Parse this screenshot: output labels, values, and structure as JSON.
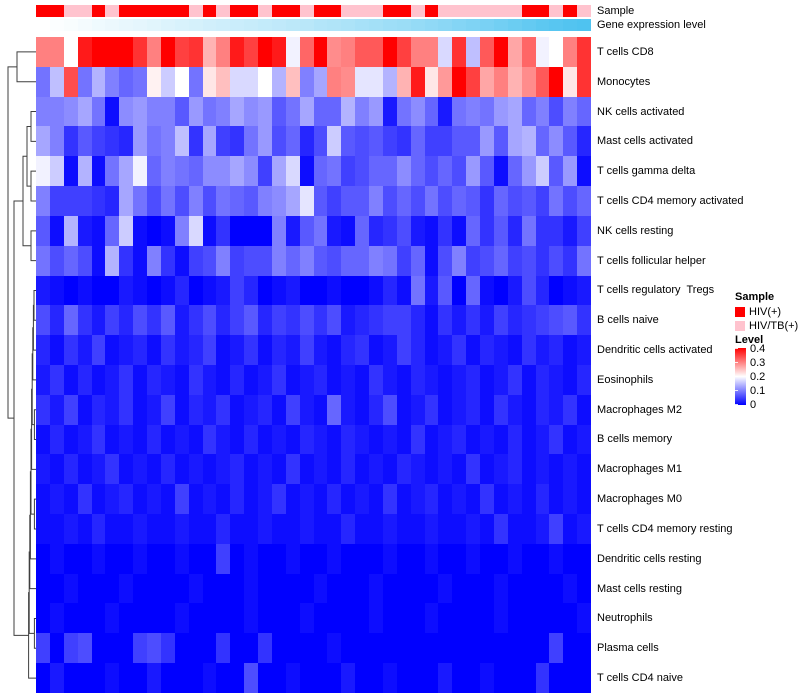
{
  "chart_data": {
    "type": "heatmap",
    "description": "Clustered heatmap of immune cell type levels per sample, with sample-group and gene-expression-level column annotations and a row dendrogram",
    "n_columns": 40,
    "value_range": [
      0,
      0.4
    ],
    "cell_types": [
      "T cells CD8",
      "Monocytes",
      "NK cells activated",
      "Mast cells activated",
      "T cells gamma delta",
      "T cells CD4 memory activated",
      "NK cells resting",
      "T cells follicular helper",
      "T cells regulatory  Tregs",
      "B cells naive",
      "Dendritic cells activated",
      "Eosinophils",
      "Macrophages M2",
      "B cells memory",
      "Macrophages M1",
      "Macrophages M0",
      "T cells CD4 memory resting",
      "Dendritic cells resting",
      "Mast cells resting",
      "Neutrophils",
      "Plasma cells",
      "T cells CD4 naive"
    ],
    "matrix": [
      [
        0.3,
        0.3,
        0.2,
        0.38,
        0.4,
        0.4,
        0.4,
        0.36,
        0.3,
        0.4,
        0.35,
        0.36,
        0.26,
        0.3,
        0.38,
        0.35,
        0.4,
        0.38,
        0.19,
        0.32,
        0.4,
        0.29,
        0.3,
        0.33,
        0.33,
        0.4,
        0.35,
        0.3,
        0.3,
        0.17,
        0.36,
        0.15,
        0.33,
        0.4,
        0.27,
        0.32,
        0.19,
        0.2,
        0.3,
        0.36
      ],
      [
        0.09,
        0.15,
        0.34,
        0.09,
        0.14,
        0.1,
        0.08,
        0.09,
        0.21,
        0.16,
        0.2,
        0.09,
        0.22,
        0.25,
        0.17,
        0.17,
        0.2,
        0.14,
        0.25,
        0.1,
        0.13,
        0.3,
        0.29,
        0.18,
        0.18,
        0.14,
        0.26,
        0.38,
        0.22,
        0.28,
        0.4,
        0.35,
        0.27,
        0.3,
        0.26,
        0.29,
        0.33,
        0.4,
        0.22,
        0.36
      ],
      [
        0.1,
        0.1,
        0.11,
        0.13,
        0.09,
        0.01,
        0.11,
        0.12,
        0.1,
        0.1,
        0.07,
        0.12,
        0.09,
        0.1,
        0.13,
        0.11,
        0.12,
        0.07,
        0.09,
        0.13,
        0.08,
        0.08,
        0.14,
        0.1,
        0.12,
        0.02,
        0.09,
        0.11,
        0.08,
        0.02,
        0.09,
        0.1,
        0.09,
        0.12,
        0.13,
        0.08,
        0.1,
        0.06,
        0.1,
        0.08
      ],
      [
        0.13,
        0.1,
        0.04,
        0.07,
        0.05,
        0.04,
        0.03,
        0.12,
        0.09,
        0.1,
        0.15,
        0.04,
        0.13,
        0.05,
        0.04,
        0.09,
        0.12,
        0.06,
        0.08,
        0.03,
        0.06,
        0.16,
        0.07,
        0.06,
        0.07,
        0.05,
        0.04,
        0.08,
        0.05,
        0.05,
        0.07,
        0.07,
        0.12,
        0.07,
        0.13,
        0.14,
        0.08,
        0.11,
        0.07,
        0.03
      ],
      [
        0.19,
        0.16,
        0.01,
        0.14,
        0.01,
        0.09,
        0.13,
        0.19,
        0.08,
        0.1,
        0.09,
        0.08,
        0.11,
        0.11,
        0.13,
        0.11,
        0.05,
        0.13,
        0.17,
        0.01,
        0.08,
        0.09,
        0.05,
        0.06,
        0.08,
        0.08,
        0.11,
        0.08,
        0.06,
        0.08,
        0.06,
        0.12,
        0.07,
        0.01,
        0.08,
        0.12,
        0.16,
        0.07,
        0.12,
        0.01
      ],
      [
        0.1,
        0.05,
        0.05,
        0.05,
        0.04,
        0.03,
        0.13,
        0.09,
        0.06,
        0.09,
        0.06,
        0.1,
        0.06,
        0.09,
        0.08,
        0.07,
        0.1,
        0.11,
        0.13,
        0.18,
        0.07,
        0.05,
        0.07,
        0.07,
        0.1,
        0.06,
        0.08,
        0.06,
        0.09,
        0.06,
        0.08,
        0.07,
        0.04,
        0.08,
        0.06,
        0.07,
        0.05,
        0.09,
        0.06,
        0.08
      ],
      [
        0.07,
        0.01,
        0.14,
        0.02,
        0.01,
        0.08,
        0.16,
        0.01,
        0.0,
        0.01,
        0.1,
        0.17,
        0.01,
        0.04,
        0.0,
        0.0,
        0.0,
        0.1,
        0.02,
        0.07,
        0.09,
        0.02,
        0.01,
        0.08,
        0.03,
        0.04,
        0.06,
        0.02,
        0.01,
        0.04,
        0.01,
        0.08,
        0.04,
        0.07,
        0.03,
        0.09,
        0.04,
        0.04,
        0.02,
        0.05
      ],
      [
        0.09,
        0.06,
        0.08,
        0.06,
        0.01,
        0.14,
        0.04,
        0.01,
        0.1,
        0.04,
        0.01,
        0.05,
        0.06,
        0.1,
        0.05,
        0.06,
        0.06,
        0.1,
        0.08,
        0.1,
        0.07,
        0.06,
        0.08,
        0.08,
        0.1,
        0.09,
        0.05,
        0.08,
        0.01,
        0.06,
        0.1,
        0.05,
        0.06,
        0.08,
        0.05,
        0.06,
        0.04,
        0.06,
        0.04,
        0.09
      ],
      [
        0.02,
        0.01,
        0.0,
        0.01,
        0.0,
        0.0,
        0.02,
        0.01,
        0.0,
        0.01,
        0.03,
        0.0,
        0.01,
        0.02,
        0.05,
        0.03,
        0.0,
        0.01,
        0.02,
        0.0,
        0.0,
        0.01,
        0.0,
        0.0,
        0.01,
        0.03,
        0.01,
        0.09,
        0.02,
        0.07,
        0.0,
        0.08,
        0.01,
        0.0,
        0.02,
        0.06,
        0.03,
        0.0,
        0.01,
        0.02
      ],
      [
        0.06,
        0.03,
        0.08,
        0.04,
        0.02,
        0.05,
        0.03,
        0.06,
        0.04,
        0.07,
        0.02,
        0.04,
        0.06,
        0.03,
        0.05,
        0.07,
        0.03,
        0.05,
        0.04,
        0.06,
        0.04,
        0.06,
        0.02,
        0.03,
        0.04,
        0.05,
        0.05,
        0.03,
        0.01,
        0.04,
        0.02,
        0.04,
        0.02,
        0.05,
        0.03,
        0.04,
        0.05,
        0.06,
        0.07,
        0.04
      ],
      [
        0.03,
        0.01,
        0.04,
        0.02,
        0.05,
        0.01,
        0.02,
        0.03,
        0.01,
        0.04,
        0.02,
        0.03,
        0.05,
        0.01,
        0.02,
        0.04,
        0.01,
        0.03,
        0.02,
        0.05,
        0.02,
        0.01,
        0.03,
        0.04,
        0.01,
        0.02,
        0.05,
        0.03,
        0.01,
        0.02,
        0.04,
        0.01,
        0.03,
        0.02,
        0.01,
        0.04,
        0.02,
        0.03,
        0.01,
        0.02
      ],
      [
        0.02,
        0.04,
        0.01,
        0.03,
        0.01,
        0.02,
        0.04,
        0.01,
        0.03,
        0.02,
        0.01,
        0.04,
        0.02,
        0.01,
        0.03,
        0.01,
        0.02,
        0.04,
        0.01,
        0.02,
        0.03,
        0.01,
        0.02,
        0.01,
        0.04,
        0.02,
        0.01,
        0.03,
        0.02,
        0.01,
        0.02,
        0.03,
        0.01,
        0.02,
        0.04,
        0.01,
        0.03,
        0.02,
        0.01,
        0.03
      ],
      [
        0.04,
        0.02,
        0.05,
        0.01,
        0.03,
        0.02,
        0.04,
        0.01,
        0.02,
        0.05,
        0.01,
        0.03,
        0.02,
        0.04,
        0.01,
        0.02,
        0.03,
        0.01,
        0.05,
        0.02,
        0.01,
        0.08,
        0.02,
        0.01,
        0.03,
        0.06,
        0.01,
        0.02,
        0.04,
        0.01,
        0.02,
        0.03,
        0.01,
        0.04,
        0.02,
        0.01,
        0.03,
        0.02,
        0.04,
        0.01
      ],
      [
        0.01,
        0.03,
        0.01,
        0.02,
        0.04,
        0.01,
        0.02,
        0.01,
        0.03,
        0.01,
        0.02,
        0.01,
        0.04,
        0.02,
        0.01,
        0.03,
        0.01,
        0.02,
        0.01,
        0.03,
        0.02,
        0.01,
        0.03,
        0.02,
        0.01,
        0.02,
        0.01,
        0.04,
        0.01,
        0.02,
        0.03,
        0.01,
        0.02,
        0.01,
        0.03,
        0.01,
        0.02,
        0.04,
        0.01,
        0.02
      ],
      [
        0.02,
        0.01,
        0.03,
        0.01,
        0.02,
        0.04,
        0.01,
        0.02,
        0.01,
        0.03,
        0.01,
        0.02,
        0.01,
        0.02,
        0.03,
        0.01,
        0.02,
        0.01,
        0.04,
        0.01,
        0.02,
        0.01,
        0.03,
        0.01,
        0.02,
        0.01,
        0.03,
        0.02,
        0.01,
        0.02,
        0.01,
        0.04,
        0.01,
        0.02,
        0.03,
        0.01,
        0.02,
        0.01,
        0.02,
        0.01
      ],
      [
        0.01,
        0.02,
        0.01,
        0.04,
        0.01,
        0.02,
        0.03,
        0.01,
        0.02,
        0.01,
        0.05,
        0.01,
        0.02,
        0.01,
        0.03,
        0.01,
        0.02,
        0.04,
        0.01,
        0.02,
        0.01,
        0.03,
        0.01,
        0.02,
        0.01,
        0.04,
        0.01,
        0.02,
        0.03,
        0.01,
        0.02,
        0.01,
        0.04,
        0.01,
        0.02,
        0.01,
        0.03,
        0.01,
        0.02,
        0.01
      ],
      [
        0.01,
        0.01,
        0.02,
        0.01,
        0.03,
        0.01,
        0.01,
        0.02,
        0.01,
        0.01,
        0.02,
        0.01,
        0.01,
        0.03,
        0.01,
        0.01,
        0.02,
        0.01,
        0.01,
        0.02,
        0.01,
        0.01,
        0.03,
        0.01,
        0.01,
        0.02,
        0.01,
        0.01,
        0.02,
        0.01,
        0.01,
        0.02,
        0.01,
        0.04,
        0.01,
        0.01,
        0.02,
        0.05,
        0.01,
        0.02
      ],
      [
        0.0,
        0.01,
        0.0,
        0.0,
        0.01,
        0.0,
        0.0,
        0.01,
        0.0,
        0.0,
        0.01,
        0.0,
        0.0,
        0.05,
        0.0,
        0.01,
        0.0,
        0.0,
        0.01,
        0.0,
        0.0,
        0.01,
        0.0,
        0.0,
        0.0,
        0.01,
        0.0,
        0.0,
        0.01,
        0.0,
        0.0,
        0.01,
        0.0,
        0.0,
        0.01,
        0.0,
        0.0,
        0.01,
        0.0,
        0.0
      ],
      [
        0.0,
        0.0,
        0.01,
        0.0,
        0.0,
        0.0,
        0.01,
        0.0,
        0.0,
        0.0,
        0.0,
        0.01,
        0.0,
        0.0,
        0.0,
        0.01,
        0.0,
        0.0,
        0.0,
        0.0,
        0.01,
        0.0,
        0.0,
        0.0,
        0.01,
        0.0,
        0.0,
        0.0,
        0.0,
        0.01,
        0.0,
        0.0,
        0.0,
        0.01,
        0.0,
        0.0,
        0.0,
        0.0,
        0.01,
        0.0
      ],
      [
        0.0,
        0.01,
        0.0,
        0.0,
        0.0,
        0.01,
        0.0,
        0.0,
        0.0,
        0.0,
        0.01,
        0.0,
        0.0,
        0.0,
        0.0,
        0.01,
        0.0,
        0.0,
        0.0,
        0.01,
        0.0,
        0.0,
        0.0,
        0.0,
        0.01,
        0.0,
        0.0,
        0.0,
        0.01,
        0.0,
        0.0,
        0.0,
        0.0,
        0.01,
        0.0,
        0.0,
        0.0,
        0.0,
        0.0,
        0.01
      ],
      [
        0.05,
        0.0,
        0.05,
        0.06,
        0.0,
        0.0,
        0.0,
        0.05,
        0.06,
        0.04,
        0.0,
        0.0,
        0.0,
        0.04,
        0.0,
        0.0,
        0.04,
        0.0,
        0.0,
        0.0,
        0.0,
        0.01,
        0.0,
        0.0,
        0.0,
        0.0,
        0.0,
        0.0,
        0.0,
        0.0,
        0.0,
        0.0,
        0.0,
        0.0,
        0.0,
        0.0,
        0.0,
        0.05,
        0.0,
        0.0
      ],
      [
        0.0,
        0.02,
        0.0,
        0.0,
        0.0,
        0.01,
        0.0,
        0.0,
        0.02,
        0.0,
        0.0,
        0.0,
        0.01,
        0.0,
        0.0,
        0.06,
        0.0,
        0.0,
        0.01,
        0.0,
        0.0,
        0.0,
        0.02,
        0.0,
        0.0,
        0.01,
        0.0,
        0.0,
        0.0,
        0.02,
        0.0,
        0.0,
        0.01,
        0.0,
        0.0,
        0.0,
        0.04,
        0.0,
        0.0,
        0.0
      ]
    ],
    "column_annotations": {
      "sample": {
        "label": "Sample",
        "values": [
          "HIV(+)",
          "HIV(+)",
          "HIV/TB(+)",
          "HIV/TB(+)",
          "HIV(+)",
          "HIV/TB(+)",
          "HIV(+)",
          "HIV(+)",
          "HIV(+)",
          "HIV(+)",
          "HIV(+)",
          "HIV/TB(+)",
          "HIV(+)",
          "HIV/TB(+)",
          "HIV(+)",
          "HIV(+)",
          "HIV/TB(+)",
          "HIV(+)",
          "HIV(+)",
          "HIV/TB(+)",
          "HIV(+)",
          "HIV(+)",
          "HIV/TB(+)",
          "HIV/TB(+)",
          "HIV/TB(+)",
          "HIV(+)",
          "HIV(+)",
          "HIV/TB(+)",
          "HIV(+)",
          "HIV/TB(+)",
          "HIV/TB(+)",
          "HIV/TB(+)",
          "HIV/TB(+)",
          "HIV/TB(+)",
          "HIV/TB(+)",
          "HIV(+)",
          "HIV(+)",
          "HIV/TB(+)",
          "HIV(+)",
          "HIV/TB(+)"
        ]
      },
      "gene_expression_level": {
        "label": "Gene expression level",
        "values": [
          0.0,
          0.02,
          0.04,
          0.06,
          0.09,
          0.11,
          0.13,
          0.15,
          0.17,
          0.2,
          0.22,
          0.24,
          0.26,
          0.28,
          0.3,
          0.32,
          0.34,
          0.36,
          0.38,
          0.4,
          0.43,
          0.45,
          0.47,
          0.5,
          0.52,
          0.55,
          0.57,
          0.6,
          0.63,
          0.66,
          0.7,
          0.73,
          0.76,
          0.8,
          0.84,
          0.88,
          0.92,
          0.95,
          0.98,
          1.0
        ]
      }
    },
    "legends": {
      "sample": {
        "title": "Sample",
        "items": [
          {
            "label": "HIV(+)",
            "color": "#FF0000"
          },
          {
            "label": "HIV/TB(+)",
            "color": "#FFC3CE"
          }
        ]
      },
      "level": {
        "title": "Level",
        "ticks": [
          "0.4",
          "0.3",
          "0.2",
          "0.1",
          "0"
        ],
        "color_high": "#FF0000",
        "color_mid": "#FFFFFF",
        "color_low": "#0000FF"
      }
    },
    "colors": {
      "gene_annotation_high": "#4FC3F0",
      "gene_annotation_low": "#FFFFFF",
      "dendrogram": "#3F3F3F"
    },
    "dendrogram": {
      "merges": [
        [
          -1,
          -2,
          19
        ],
        [
          -3,
          -4,
          5
        ],
        [
          -5,
          -6,
          5
        ],
        [
          2,
          3,
          9
        ],
        [
          -7,
          -8,
          5
        ],
        [
          4,
          5,
          13
        ],
        [
          -9,
          -10,
          2
        ],
        [
          7,
          -11,
          2.6
        ],
        [
          8,
          -12,
          3.2
        ],
        [
          -13,
          -14,
          1.6
        ],
        [
          9,
          10,
          3.8
        ],
        [
          11,
          -15,
          4.4
        ],
        [
          -16,
          -17,
          1.6
        ],
        [
          12,
          13,
          5
        ],
        [
          14,
          -18,
          5.6
        ],
        [
          15,
          -19,
          6.2
        ],
        [
          -20,
          -21,
          1.6
        ],
        [
          16,
          17,
          6.8
        ],
        [
          18,
          -22,
          7.4
        ],
        [
          6,
          19,
          22
        ],
        [
          1,
          20,
          28
        ]
      ]
    },
    "axis": {
      "columns_labeled": false,
      "rows_label_side": "right",
      "gridlines": false
    }
  }
}
